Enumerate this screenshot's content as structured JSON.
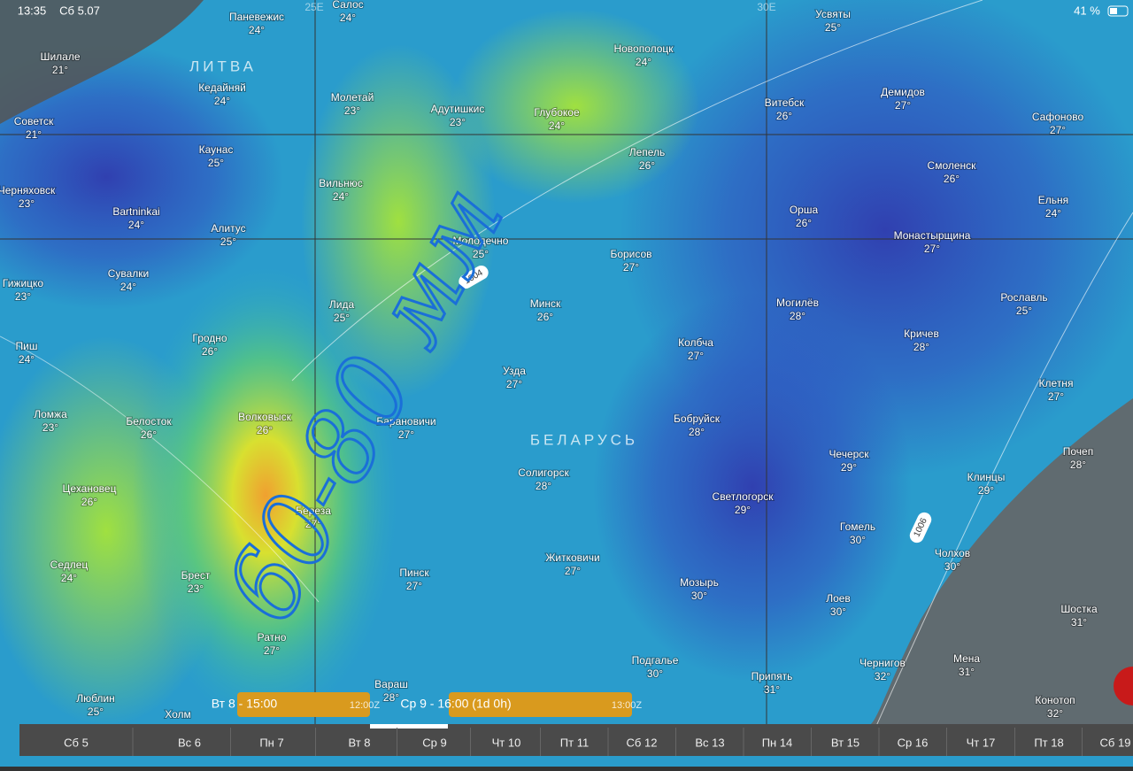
{
  "status_bar": {
    "time": "13:35",
    "date": "Сб 5.07",
    "battery": "41 %"
  },
  "map": {
    "country_labels": [
      "ЛИТВА",
      "БЕЛАРУСЬ"
    ],
    "meridians": [
      "25E",
      "30E"
    ],
    "isobars": [
      "1004",
      "1006"
    ],
    "annotation": "60-80 мм",
    "cities": [
      {
        "name": "Паневежис",
        "temp": "24°"
      },
      {
        "name": "Салос",
        "temp": "24°"
      },
      {
        "name": "Шилале",
        "temp": "21°"
      },
      {
        "name": "Кедайняй",
        "temp": "24°"
      },
      {
        "name": "Молетай",
        "temp": "23°"
      },
      {
        "name": "Адутишкис",
        "temp": "23°"
      },
      {
        "name": "Глубокое",
        "temp": "24°"
      },
      {
        "name": "Новополоцк",
        "temp": "24°"
      },
      {
        "name": "Усвяты",
        "temp": "25°"
      },
      {
        "name": "Демидов",
        "temp": "27°"
      },
      {
        "name": "Витебск",
        "temp": "26°"
      },
      {
        "name": "Сафоново",
        "temp": "27°"
      },
      {
        "name": "Советск",
        "temp": "21°"
      },
      {
        "name": "Каунас",
        "temp": "25°"
      },
      {
        "name": "Лепель",
        "temp": "26°"
      },
      {
        "name": "Смоленск",
        "temp": "26°"
      },
      {
        "name": "Черняховск",
        "temp": "23°"
      },
      {
        "name": "Вильнюс",
        "temp": "24°"
      },
      {
        "name": "Ельня",
        "temp": "24°"
      },
      {
        "name": "Bartninkai",
        "temp": "24°"
      },
      {
        "name": "Орша",
        "temp": "26°"
      },
      {
        "name": "Алитус",
        "temp": "25°"
      },
      {
        "name": "Молодечно",
        "temp": "25°"
      },
      {
        "name": "Монастырщина",
        "temp": "27°"
      },
      {
        "name": "Борисов",
        "temp": "27°"
      },
      {
        "name": "Сувалки",
        "temp": "24°"
      },
      {
        "name": "Гижицко",
        "temp": "23°"
      },
      {
        "name": "Минск",
        "temp": "26°"
      },
      {
        "name": "Могилёв",
        "temp": "28°"
      },
      {
        "name": "Лида",
        "temp": "25°"
      },
      {
        "name": "Рославль",
        "temp": "25°"
      },
      {
        "name": "Пиш",
        "temp": "24°"
      },
      {
        "name": "Гродно",
        "temp": "26°"
      },
      {
        "name": "Колбча",
        "temp": "27°"
      },
      {
        "name": "Кричев",
        "temp": "28°"
      },
      {
        "name": "Узда",
        "temp": "27°"
      },
      {
        "name": "Клетня",
        "temp": "27°"
      },
      {
        "name": "Ломжа",
        "temp": "23°"
      },
      {
        "name": "Белосток",
        "temp": "26°"
      },
      {
        "name": "Волковыск",
        "temp": "26°"
      },
      {
        "name": "Барановичи",
        "temp": "27°"
      },
      {
        "name": "Бобруйск",
        "temp": "28°"
      },
      {
        "name": "Почеп",
        "temp": "28°"
      },
      {
        "name": "Чечерск",
        "temp": "29°"
      },
      {
        "name": "Клинцы",
        "temp": "29°"
      },
      {
        "name": "Солигорск",
        "temp": "28°"
      },
      {
        "name": "Цехановец",
        "temp": "26°"
      },
      {
        "name": "Светлогорск",
        "temp": "29°"
      },
      {
        "name": "Береза",
        "temp": "27°"
      },
      {
        "name": "Гомель",
        "temp": "30°"
      },
      {
        "name": "Седлец",
        "temp": "24°"
      },
      {
        "name": "Житковичи",
        "temp": "27°"
      },
      {
        "name": "Чолхов",
        "temp": "30°"
      },
      {
        "name": "Брест",
        "temp": "23°"
      },
      {
        "name": "Пинск",
        "temp": "27°"
      },
      {
        "name": "Мозырь",
        "temp": "30°"
      },
      {
        "name": "Лоев",
        "temp": "30°"
      },
      {
        "name": "Шостка",
        "temp": "31°"
      },
      {
        "name": "Ратно",
        "temp": "27°"
      },
      {
        "name": "Подгалье",
        "temp": "30°"
      },
      {
        "name": "Чернигов",
        "temp": "32°"
      },
      {
        "name": "Мена",
        "temp": "31°"
      },
      {
        "name": "Припять",
        "temp": "31°"
      },
      {
        "name": "Вараш",
        "temp": "28°"
      },
      {
        "name": "Конотоп",
        "temp": "32°"
      },
      {
        "name": "Люблин",
        "temp": "25°"
      },
      {
        "name": "Холм"
      }
    ]
  },
  "timeline": {
    "days": [
      "Сб 5",
      "Вс 6",
      "Пн 7",
      "Вт 8",
      "Ср 9",
      "Чт 10",
      "Пт 11",
      "Сб 12",
      "Вс 13",
      "Пн 14",
      "Вт 15",
      "Ср 16",
      "Чт 17",
      "Пт 18",
      "Сб 19"
    ],
    "current": {
      "label": "Вт 8 - 15:00",
      "utc": "12:00Z"
    },
    "hover": {
      "label": "Ср 9 - 16:00 (1d 0h)",
      "utc": "13:00Z"
    }
  }
}
